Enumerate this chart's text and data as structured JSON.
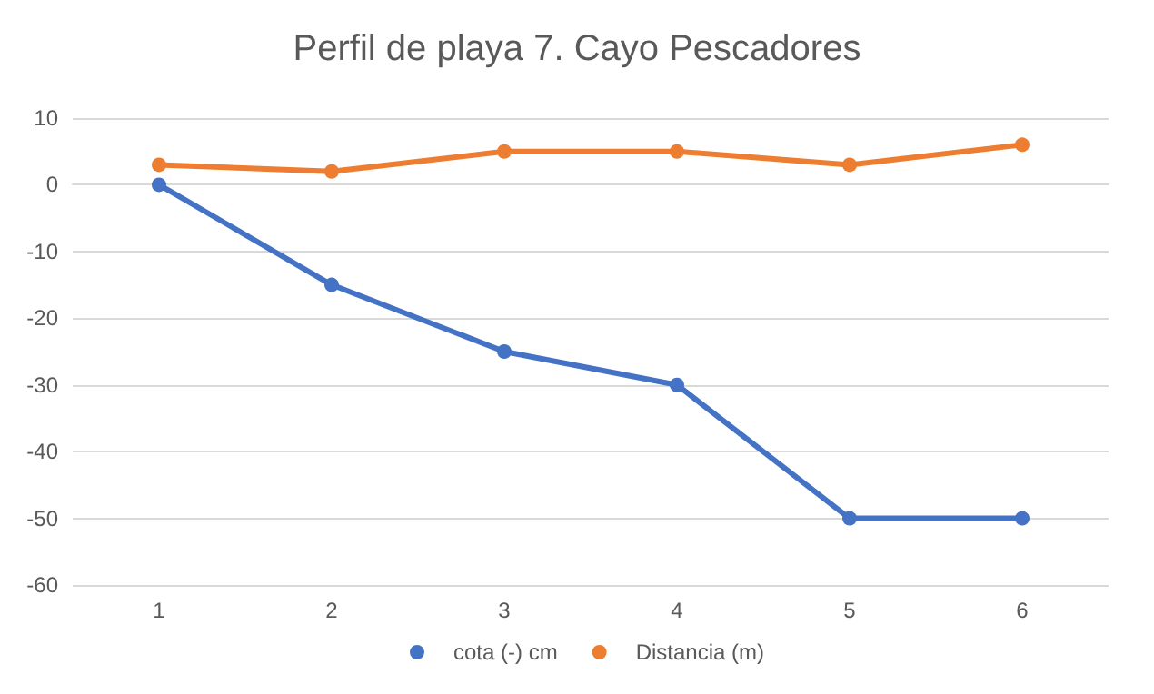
{
  "chart_data": {
    "type": "line",
    "title": "Perfil de playa 7. Cayo Pescadores",
    "categories": [
      "1",
      "2",
      "3",
      "4",
      "5",
      "6"
    ],
    "series": [
      {
        "name": "cota (-) cm",
        "color": "#4472c4",
        "values": [
          0,
          -15,
          -25,
          -30,
          -50,
          -50
        ]
      },
      {
        "name": "Distancia (m)",
        "color": "#ed7d31",
        "values": [
          3,
          2,
          5,
          5,
          3,
          6
        ]
      }
    ],
    "ylim": [
      -60,
      10
    ],
    "yticks": [
      -60,
      -50,
      -40,
      -30,
      -20,
      -10,
      0,
      10
    ],
    "grid": "y",
    "legend": "bottom",
    "marker": "circle",
    "line_style": "solid"
  }
}
